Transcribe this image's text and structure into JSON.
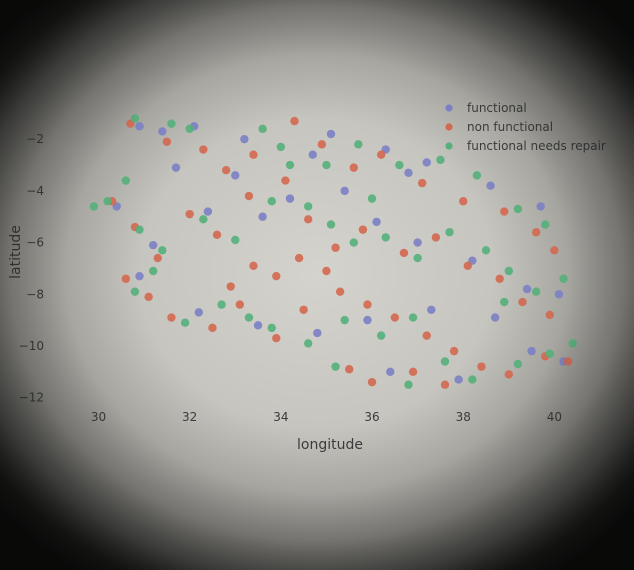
{
  "chart_data": {
    "type": "scatter",
    "title": "",
    "xlabel": "longitude",
    "ylabel": "latitude",
    "xlim": [
      29.2,
      41.0
    ],
    "ylim": [
      -12.4,
      -0.6
    ],
    "xticks": [
      30,
      32,
      34,
      36,
      38,
      40
    ],
    "yticks": [
      -2,
      -4,
      -6,
      -8,
      -10,
      -12
    ],
    "grid": false,
    "legend_position": "top-right",
    "series": [
      {
        "name": "functional",
        "color": "#7b7fc4",
        "points": [
          [
            30.9,
            -1.5
          ],
          [
            31.4,
            -1.7
          ],
          [
            32.1,
            -1.5
          ],
          [
            33.2,
            -2.0
          ],
          [
            34.7,
            -2.6
          ],
          [
            35.1,
            -1.8
          ],
          [
            36.3,
            -2.4
          ],
          [
            37.2,
            -2.9
          ],
          [
            38.6,
            -3.8
          ],
          [
            39.7,
            -4.6
          ],
          [
            30.4,
            -4.6
          ],
          [
            31.2,
            -6.1
          ],
          [
            32.4,
            -4.8
          ],
          [
            33.6,
            -5.0
          ],
          [
            34.2,
            -4.3
          ],
          [
            35.4,
            -4.0
          ],
          [
            36.1,
            -5.2
          ],
          [
            37.0,
            -6.0
          ],
          [
            38.2,
            -6.7
          ],
          [
            39.4,
            -7.8
          ],
          [
            40.1,
            -8.0
          ],
          [
            30.9,
            -7.3
          ],
          [
            32.2,
            -8.7
          ],
          [
            33.5,
            -9.2
          ],
          [
            34.8,
            -9.5
          ],
          [
            35.9,
            -9.0
          ],
          [
            37.3,
            -8.6
          ],
          [
            38.7,
            -8.9
          ],
          [
            39.5,
            -10.2
          ],
          [
            36.4,
            -11.0
          ],
          [
            37.9,
            -11.3
          ],
          [
            40.2,
            -10.6
          ],
          [
            31.7,
            -3.1
          ],
          [
            33.0,
            -3.4
          ],
          [
            36.8,
            -3.3
          ]
        ]
      },
      {
        "name": "non functional",
        "color": "#d4684f",
        "points": [
          [
            30.7,
            -1.4
          ],
          [
            31.5,
            -2.1
          ],
          [
            32.3,
            -2.4
          ],
          [
            32.8,
            -3.2
          ],
          [
            33.4,
            -2.6
          ],
          [
            34.3,
            -1.3
          ],
          [
            34.9,
            -2.2
          ],
          [
            35.6,
            -3.1
          ],
          [
            36.2,
            -2.6
          ],
          [
            37.1,
            -3.7
          ],
          [
            38.0,
            -4.4
          ],
          [
            38.9,
            -4.8
          ],
          [
            39.6,
            -5.6
          ],
          [
            40.0,
            -6.3
          ],
          [
            30.3,
            -4.4
          ],
          [
            30.8,
            -5.4
          ],
          [
            31.3,
            -6.6
          ],
          [
            32.0,
            -4.9
          ],
          [
            32.6,
            -5.7
          ],
          [
            33.3,
            -4.2
          ],
          [
            34.1,
            -3.6
          ],
          [
            34.6,
            -5.1
          ],
          [
            35.2,
            -6.2
          ],
          [
            35.8,
            -5.5
          ],
          [
            36.7,
            -6.4
          ],
          [
            37.4,
            -5.8
          ],
          [
            38.1,
            -6.9
          ],
          [
            38.8,
            -7.4
          ],
          [
            39.3,
            -8.3
          ],
          [
            39.9,
            -8.8
          ],
          [
            30.6,
            -7.4
          ],
          [
            31.1,
            -8.1
          ],
          [
            31.6,
            -8.9
          ],
          [
            32.5,
            -9.3
          ],
          [
            33.1,
            -8.4
          ],
          [
            33.9,
            -9.7
          ],
          [
            34.5,
            -8.6
          ],
          [
            35.3,
            -7.9
          ],
          [
            35.9,
            -8.4
          ],
          [
            36.5,
            -8.9
          ],
          [
            37.2,
            -9.6
          ],
          [
            37.8,
            -10.2
          ],
          [
            38.4,
            -10.8
          ],
          [
            39.0,
            -11.1
          ],
          [
            39.8,
            -10.4
          ],
          [
            40.3,
            -10.6
          ],
          [
            35.5,
            -10.9
          ],
          [
            36.0,
            -11.4
          ],
          [
            36.9,
            -11.0
          ],
          [
            37.6,
            -11.5
          ],
          [
            33.4,
            -6.9
          ],
          [
            33.9,
            -7.3
          ],
          [
            34.4,
            -6.6
          ],
          [
            32.9,
            -7.7
          ],
          [
            35.0,
            -7.1
          ]
        ]
      },
      {
        "name": "functional needs repair",
        "color": "#54b07a",
        "points": [
          [
            30.8,
            -1.2
          ],
          [
            31.6,
            -1.4
          ],
          [
            32.0,
            -1.6
          ],
          [
            33.6,
            -1.6
          ],
          [
            34.0,
            -2.3
          ],
          [
            35.0,
            -3.0
          ],
          [
            35.7,
            -2.2
          ],
          [
            36.6,
            -3.0
          ],
          [
            37.5,
            -2.8
          ],
          [
            38.3,
            -3.4
          ],
          [
            39.2,
            -4.7
          ],
          [
            39.8,
            -5.3
          ],
          [
            29.9,
            -4.6
          ],
          [
            30.2,
            -4.4
          ],
          [
            30.6,
            -3.6
          ],
          [
            30.9,
            -5.5
          ],
          [
            31.4,
            -6.3
          ],
          [
            32.3,
            -5.1
          ],
          [
            33.0,
            -5.9
          ],
          [
            33.8,
            -4.4
          ],
          [
            34.6,
            -4.6
          ],
          [
            35.1,
            -5.3
          ],
          [
            35.6,
            -6.0
          ],
          [
            36.3,
            -5.8
          ],
          [
            37.0,
            -6.6
          ],
          [
            37.7,
            -5.6
          ],
          [
            38.5,
            -6.3
          ],
          [
            39.0,
            -7.1
          ],
          [
            39.6,
            -7.9
          ],
          [
            40.2,
            -7.4
          ],
          [
            30.8,
            -7.9
          ],
          [
            31.2,
            -7.1
          ],
          [
            31.9,
            -9.1
          ],
          [
            32.7,
            -8.4
          ],
          [
            33.3,
            -8.9
          ],
          [
            33.8,
            -9.3
          ],
          [
            34.6,
            -9.9
          ],
          [
            35.4,
            -9.0
          ],
          [
            36.2,
            -9.6
          ],
          [
            36.9,
            -8.9
          ],
          [
            37.6,
            -10.6
          ],
          [
            38.2,
            -11.3
          ],
          [
            39.2,
            -10.7
          ],
          [
            39.9,
            -10.3
          ],
          [
            40.4,
            -9.9
          ],
          [
            35.2,
            -10.8
          ],
          [
            36.8,
            -11.5
          ],
          [
            38.9,
            -8.3
          ],
          [
            34.2,
            -3.0
          ],
          [
            36.0,
            -4.3
          ]
        ]
      }
    ]
  }
}
